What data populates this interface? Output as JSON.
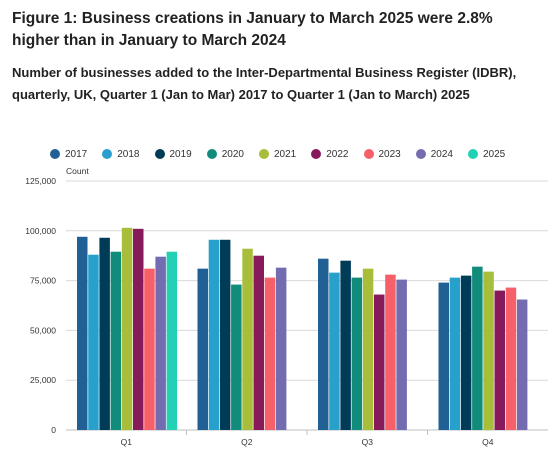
{
  "title": "Figure 1: Business creations in January to March 2025 were 2.8% higher than in January to March 2024",
  "subtitle": "Number of businesses added to the Inter-Departmental Business Register (IDBR), quarterly, UK, Quarter 1 (Jan to Mar) 2017 to Quarter 1 (Jan to March) 2025",
  "chart_data": {
    "type": "bar",
    "title": "",
    "xlabel": "",
    "ylabel": "Count",
    "categories": [
      "Q1",
      "Q2",
      "Q3",
      "Q4"
    ],
    "ylim": [
      0,
      125000
    ],
    "yticks": [
      0,
      25000,
      50000,
      75000,
      100000,
      125000
    ],
    "ytick_labels": [
      "0",
      "25,000",
      "50,000",
      "75,000",
      "100,000",
      "125,000"
    ],
    "grid": true,
    "legend_position": "top",
    "series": [
      {
        "name": "2017",
        "color": "#206095",
        "values": [
          97000,
          81000,
          86000,
          74000
        ]
      },
      {
        "name": "2018",
        "color": "#27a0cc",
        "values": [
          88000,
          95500,
          79000,
          76500
        ]
      },
      {
        "name": "2019",
        "color": "#003c57",
        "values": [
          96500,
          95500,
          85000,
          77500
        ]
      },
      {
        "name": "2020",
        "color": "#118c7b",
        "values": [
          89500,
          73000,
          76500,
          82000
        ]
      },
      {
        "name": "2021",
        "color": "#a8bd3a",
        "values": [
          101500,
          91000,
          81000,
          79500
        ]
      },
      {
        "name": "2022",
        "color": "#871a5b",
        "values": [
          101000,
          87500,
          68000,
          70000
        ]
      },
      {
        "name": "2023",
        "color": "#f66068",
        "values": [
          81000,
          76500,
          78000,
          71500
        ]
      },
      {
        "name": "2024",
        "color": "#746cb1",
        "values": [
          87000,
          81500,
          75500,
          65500
        ]
      },
      {
        "name": "2025",
        "color": "#22d0b6",
        "values": [
          89500,
          null,
          null,
          null
        ]
      }
    ]
  }
}
